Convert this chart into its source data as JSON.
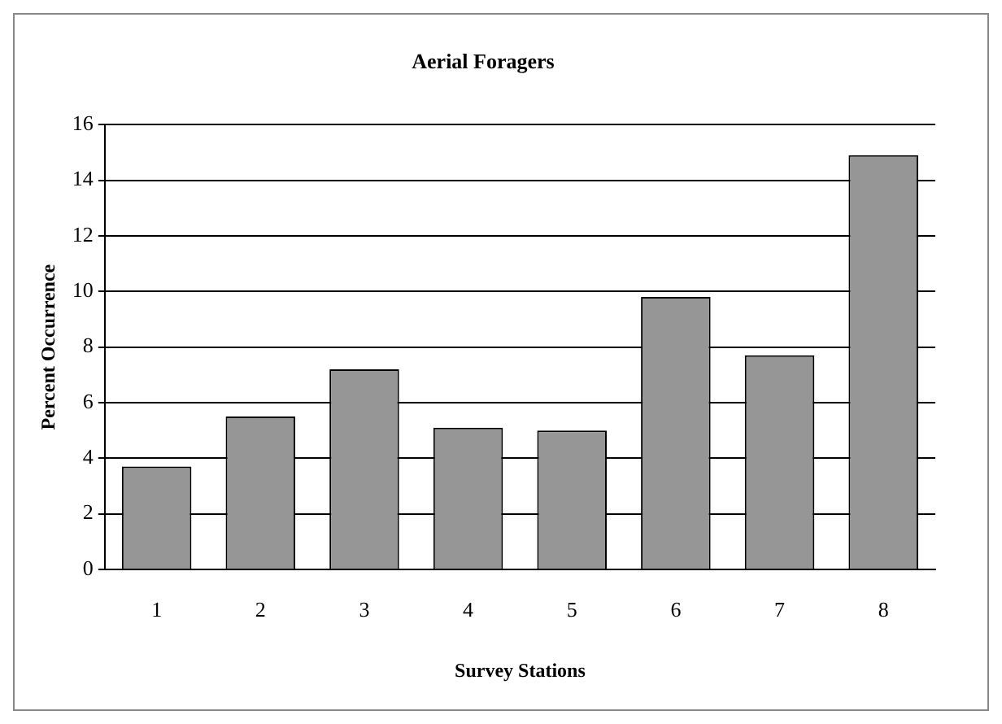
{
  "chart_data": {
    "type": "bar",
    "title": "Aerial Foragers",
    "xlabel": "Survey Stations",
    "ylabel": "Percent Occurrence",
    "categories": [
      "1",
      "2",
      "3",
      "4",
      "5",
      "6",
      "7",
      "8"
    ],
    "values": [
      3.7,
      5.5,
      7.2,
      5.1,
      5.0,
      9.8,
      7.7,
      14.9
    ],
    "color": "#969696",
    "ylim": [
      0,
      16
    ],
    "yticks": [
      0,
      2,
      4,
      6,
      8,
      10,
      12,
      14,
      16
    ],
    "grid": "y",
    "legend": false
  }
}
